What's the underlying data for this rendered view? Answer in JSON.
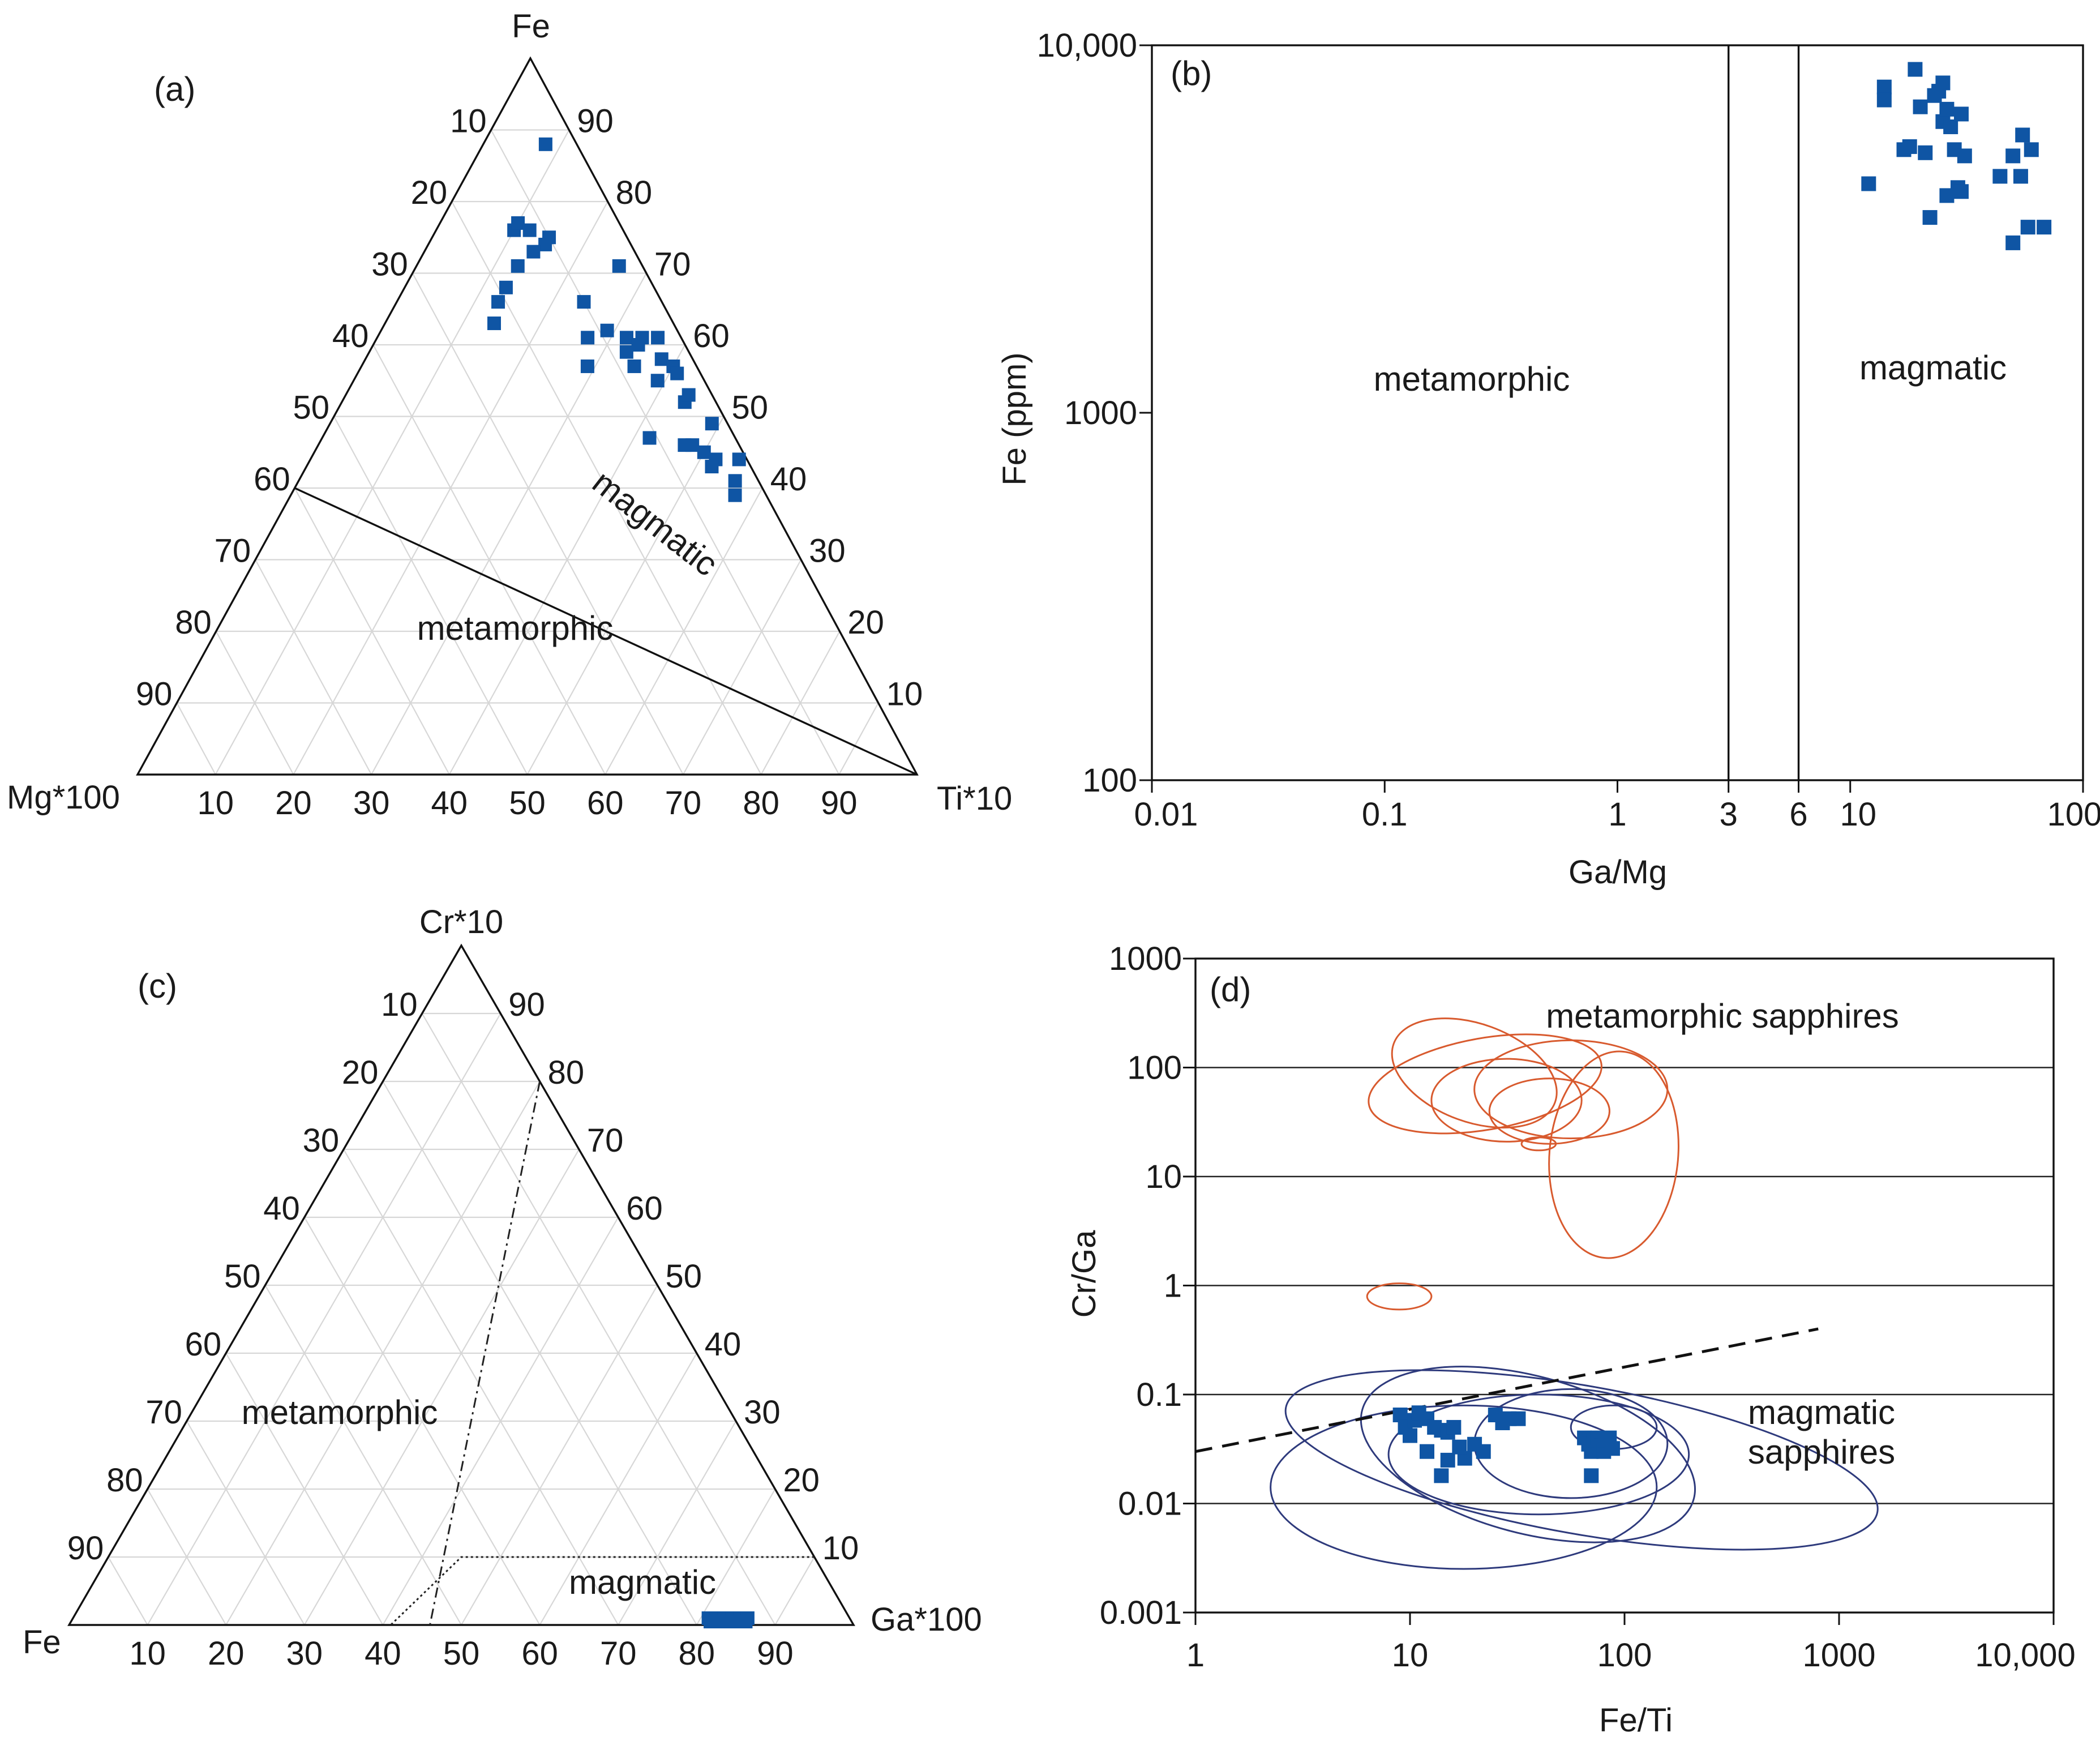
{
  "colors": {
    "point": "#0f55a4",
    "metamorphic_field": "#d85a2e",
    "magmatic_field": "#2e3a7c",
    "grid": "#d7d7d7"
  },
  "chart_data": [
    {
      "id": "a",
      "panel_label": "(a)",
      "type": "scatter",
      "subtype": "ternary",
      "vertex_labels": {
        "top": "Fe",
        "left": "Mg*100",
        "right": "Ti*10"
      },
      "axis_ticks": [
        "10",
        "20",
        "30",
        "40",
        "50",
        "60",
        "70",
        "80",
        "90"
      ],
      "boundary": {
        "description": "line from Fe=40 on Fe–Mg edge to Ti*10 apex",
        "from": {
          "Fe": 40,
          "Mg": 60,
          "Ti": 0
        },
        "to": {
          "Fe": 0,
          "Mg": 0,
          "Ti": 100
        }
      },
      "regions": [
        {
          "name": "magmatic",
          "text": "magmatic"
        },
        {
          "name": "metamorphic",
          "text": "metamorphic"
        }
      ],
      "points_bary": [
        [
          0.88,
          0.04,
          0.08
        ],
        [
          0.76,
          0.14,
          0.1
        ],
        [
          0.77,
          0.13,
          0.1
        ],
        [
          0.76,
          0.12,
          0.12
        ],
        [
          0.75,
          0.1,
          0.15
        ],
        [
          0.74,
          0.11,
          0.15
        ],
        [
          0.73,
          0.13,
          0.14
        ],
        [
          0.71,
          0.16,
          0.13
        ],
        [
          0.68,
          0.19,
          0.13
        ],
        [
          0.66,
          0.21,
          0.13
        ],
        [
          0.63,
          0.23,
          0.14
        ],
        [
          0.71,
          0.03,
          0.26
        ],
        [
          0.66,
          0.1,
          0.24
        ],
        [
          0.62,
          0.09,
          0.29
        ],
        [
          0.61,
          0.12,
          0.27
        ],
        [
          0.61,
          0.07,
          0.32
        ],
        [
          0.61,
          0.05,
          0.34
        ],
        [
          0.6,
          0.06,
          0.34
        ],
        [
          0.61,
          0.03,
          0.36
        ],
        [
          0.59,
          0.08,
          0.33
        ],
        [
          0.57,
          0.14,
          0.29
        ],
        [
          0.58,
          0.04,
          0.38
        ],
        [
          0.57,
          0.08,
          0.35
        ],
        [
          0.57,
          0.03,
          0.4
        ],
        [
          0.56,
          0.03,
          0.41
        ],
        [
          0.55,
          0.06,
          0.39
        ],
        [
          0.52,
          0.04,
          0.44
        ],
        [
          0.53,
          0.03,
          0.44
        ],
        [
          0.49,
          0.02,
          0.49
        ],
        [
          0.47,
          0.11,
          0.42
        ],
        [
          0.46,
          0.07,
          0.47
        ],
        [
          0.46,
          0.06,
          0.48
        ],
        [
          0.45,
          0.05,
          0.5
        ],
        [
          0.44,
          0.04,
          0.52
        ],
        [
          0.43,
          0.05,
          0.52
        ],
        [
          0.44,
          0.01,
          0.55
        ],
        [
          0.41,
          0.03,
          0.56
        ],
        [
          0.39,
          0.04,
          0.57
        ]
      ]
    },
    {
      "id": "b",
      "panel_label": "(b)",
      "type": "scatter",
      "xscale": "log",
      "yscale": "log",
      "xlabel": "Ga/Mg",
      "ylabel": "Fe (ppm)",
      "xlim": [
        0.01,
        100
      ],
      "ylim": [
        100,
        10000
      ],
      "xtick_labels": [
        "0.01",
        "0.1",
        "1",
        "3",
        "6",
        "10",
        "100"
      ],
      "xtick_values": [
        0.01,
        0.1,
        1,
        3,
        6,
        10,
        100
      ],
      "ytick_labels": [
        "100",
        "1000",
        "10,000"
      ],
      "ytick_values": [
        100,
        1000,
        10000
      ],
      "vertical_lines": [
        3,
        6
      ],
      "regions": [
        {
          "name": "metamorphic",
          "text": "metamorphic"
        },
        {
          "name": "magmatic",
          "text": "magmatic"
        }
      ],
      "points": [
        [
          14,
          7700
        ],
        [
          14,
          7100
        ],
        [
          19,
          8600
        ],
        [
          17,
          5200
        ],
        [
          18,
          5300
        ],
        [
          20,
          6800
        ],
        [
          21,
          5100
        ],
        [
          24,
          7500
        ],
        [
          25,
          7900
        ],
        [
          23,
          7300
        ],
        [
          25,
          6200
        ],
        [
          26,
          6700
        ],
        [
          27,
          6000
        ],
        [
          28,
          5200
        ],
        [
          30,
          6500
        ],
        [
          31,
          5000
        ],
        [
          12,
          4200
        ],
        [
          29,
          4100
        ],
        [
          30,
          4000
        ],
        [
          26,
          3900
        ],
        [
          22,
          3400
        ],
        [
          55,
          5700
        ],
        [
          60,
          5200
        ],
        [
          50,
          5000
        ],
        [
          44,
          4400
        ],
        [
          54,
          4400
        ],
        [
          58,
          3200
        ],
        [
          68,
          3200
        ],
        [
          50,
          2900
        ]
      ]
    },
    {
      "id": "c",
      "panel_label": "(c)",
      "type": "scatter",
      "subtype": "ternary",
      "vertex_labels": {
        "top": "Cr*10",
        "left": "Fe",
        "right": "Ga*100"
      },
      "axis_ticks": [
        "10",
        "20",
        "30",
        "40",
        "50",
        "60",
        "70",
        "80",
        "90"
      ],
      "boundaries": [
        {
          "style": "dash-dot",
          "from": {
            "Cr": 80,
            "Ga": 20,
            "Fe": 0
          },
          "to": {
            "Cr": 0,
            "Ga": 46,
            "Fe": 54
          }
        },
        {
          "style": "dotted",
          "path": [
            {
              "Cr": 10,
              "Ga": 90,
              "Fe": 0
            },
            {
              "Cr": 10,
              "Ga": 45,
              "Fe": 45
            },
            {
              "Cr": 0,
              "Ga": 41,
              "Fe": 59
            }
          ]
        }
      ],
      "regions": [
        {
          "name": "metamorphic",
          "text": "metamorphic"
        },
        {
          "name": "magmatic",
          "text": "magmatic"
        }
      ],
      "points_cga": [
        [
          0.01,
          0.81
        ],
        [
          0.01,
          0.82
        ],
        [
          0.01,
          0.83
        ],
        [
          0.01,
          0.84
        ],
        [
          0.01,
          0.85
        ],
        [
          0.01,
          0.86
        ],
        [
          0.005,
          0.815
        ],
        [
          0.005,
          0.83
        ],
        [
          0.005,
          0.845
        ],
        [
          0.005,
          0.86
        ]
      ]
    },
    {
      "id": "d",
      "panel_label": "(d)",
      "type": "scatter",
      "xscale": "log",
      "yscale": "log",
      "xlabel": "Fe/Ti",
      "ylabel": "Cr/Ga",
      "xlim": [
        1,
        10000
      ],
      "ylim": [
        0.001,
        1000
      ],
      "xtick_labels": [
        "1",
        "10",
        "100",
        "1000",
        "10,000"
      ],
      "xtick_values": [
        1,
        10,
        100,
        1000,
        10000
      ],
      "ytick_labels": [
        "0.001",
        "0.01",
        "0.1",
        "1",
        "10",
        "100",
        "1000"
      ],
      "ytick_values": [
        0.001,
        0.01,
        0.1,
        1,
        10,
        100,
        1000
      ],
      "region_labels": {
        "metamorphic": "metamorphic sapphires",
        "magmatic_line1": "magmatic",
        "magmatic_line2": "sapphires"
      },
      "dashed_divider": {
        "from": [
          1,
          0.03
        ],
        "to": [
          800,
          0.4
        ]
      },
      "metamorphic_fields_log": [
        [
          1.35,
          1.85,
          0.55,
          0.42,
          -10
        ],
        [
          1.3,
          1.95,
          0.4,
          0.45,
          20
        ],
        [
          1.45,
          1.7,
          0.35,
          0.38,
          0
        ],
        [
          1.65,
          1.6,
          0.28,
          0.3,
          0
        ],
        [
          1.75,
          1.8,
          0.45,
          0.45,
          0
        ],
        [
          1.95,
          1.2,
          0.3,
          0.95,
          5
        ],
        [
          1.6,
          1.3,
          0.08,
          0.06,
          0
        ],
        [
          0.95,
          -0.1,
          0.15,
          0.12,
          0
        ]
      ],
      "magmatic_fields_log": [
        [
          1.55,
          -1.55,
          0.8,
          0.72,
          15
        ],
        [
          1.8,
          -1.6,
          1.4,
          0.68,
          10
        ],
        [
          1.25,
          -1.85,
          0.9,
          0.75,
          0
        ],
        [
          1.6,
          -1.55,
          0.7,
          0.55,
          0
        ],
        [
          1.75,
          -1.45,
          0.45,
          0.5,
          0
        ],
        [
          1.95,
          -1.3,
          0.2,
          0.2,
          0
        ]
      ],
      "points": [
        [
          9,
          0.065
        ],
        [
          9.5,
          0.05
        ],
        [
          10,
          0.042
        ],
        [
          10.5,
          0.058
        ],
        [
          11,
          0.068
        ],
        [
          12,
          0.06
        ],
        [
          13,
          0.05
        ],
        [
          14,
          0.047
        ],
        [
          15,
          0.045
        ],
        [
          16,
          0.05
        ],
        [
          12,
          0.03
        ],
        [
          14,
          0.018
        ],
        [
          15,
          0.025
        ],
        [
          18,
          0.026
        ],
        [
          17,
          0.033
        ],
        [
          20,
          0.035
        ],
        [
          22,
          0.03
        ],
        [
          25,
          0.065
        ],
        [
          27,
          0.055
        ],
        [
          29,
          0.06
        ],
        [
          32,
          0.06
        ],
        [
          65,
          0.04
        ],
        [
          68,
          0.035
        ],
        [
          70,
          0.03
        ],
        [
          72,
          0.038
        ],
        [
          75,
          0.04
        ],
        [
          78,
          0.034
        ],
        [
          80,
          0.03
        ],
        [
          82,
          0.038
        ],
        [
          85,
          0.04
        ],
        [
          88,
          0.032
        ],
        [
          70,
          0.018
        ]
      ]
    }
  ]
}
